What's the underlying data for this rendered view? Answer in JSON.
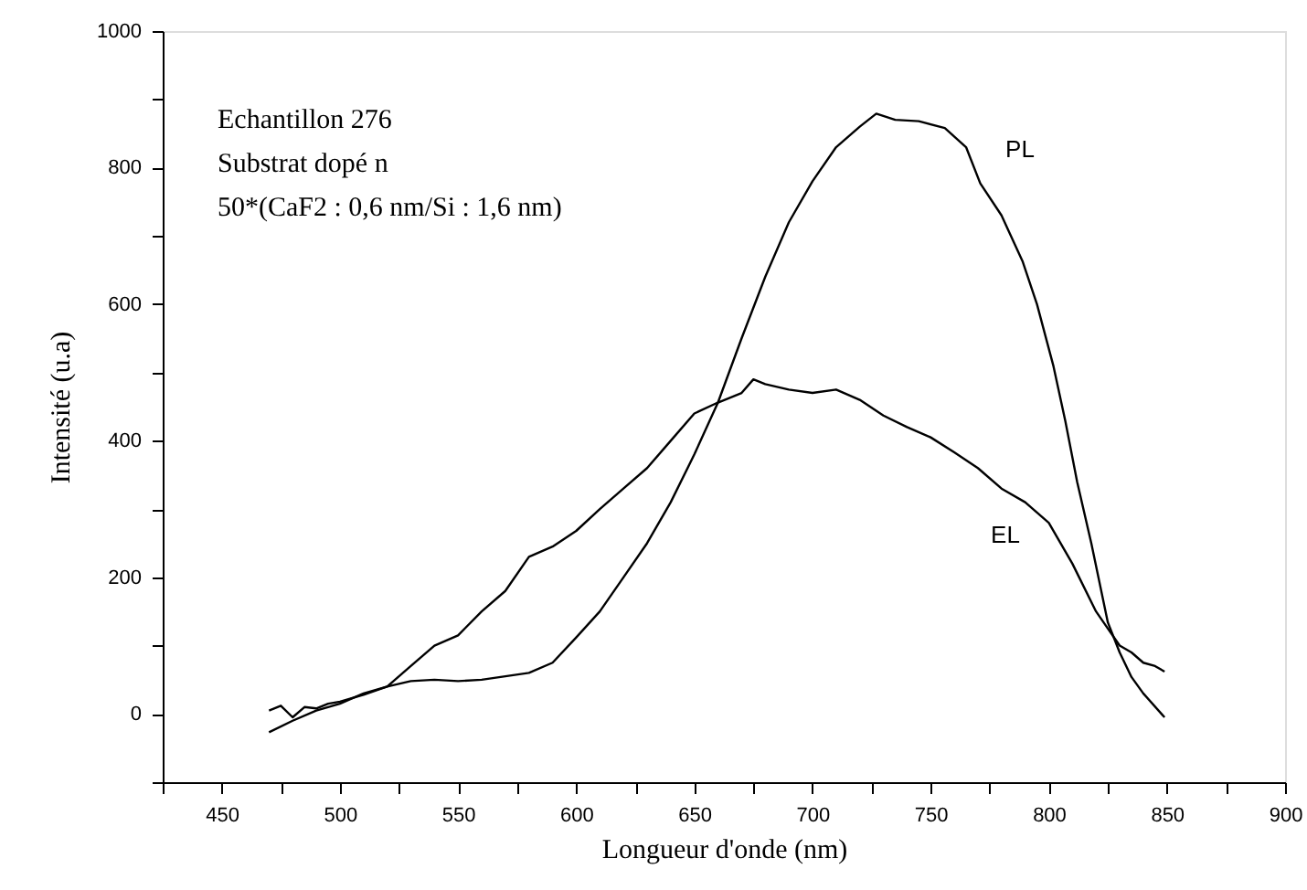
{
  "chart_data": {
    "type": "line",
    "xlabel": "Longueur d'onde (nm)",
    "ylabel": "Intensité (u.a)",
    "xlim": [
      425,
      900
    ],
    "ylim": [
      -100,
      1000
    ],
    "xticks": [
      {
        "value": 425,
        "label": null
      },
      450,
      {
        "value": 475,
        "label": null
      },
      500,
      {
        "value": 525,
        "label": null
      },
      550,
      {
        "value": 575,
        "label": null
      },
      600,
      {
        "value": 625,
        "label": null
      },
      650,
      {
        "value": 675,
        "label": null
      },
      700,
      {
        "value": 725,
        "label": null
      },
      750,
      {
        "value": 775,
        "label": null
      },
      800,
      {
        "value": 825,
        "label": null
      },
      850,
      {
        "value": 875,
        "label": null
      },
      900
    ],
    "yticks": [
      {
        "value": -100,
        "label": null
      },
      0,
      {
        "value": 100,
        "label": null
      },
      200,
      {
        "value": 300,
        "label": null
      },
      400,
      {
        "value": 500,
        "label": null
      },
      600,
      {
        "value": 700,
        "label": null
      },
      800,
      {
        "value": 900,
        "label": null
      },
      1000
    ],
    "grid": false,
    "marker": "none",
    "line_style": "solid",
    "annotations": [
      "Echantillon 276",
      "Substrat dopé n",
      "50*(CaF2 : 0,6 nm/Si : 1,6 nm)"
    ],
    "series": [
      {
        "name": "EL",
        "color": "#000000",
        "x": [
          470,
          475,
          480,
          485,
          490,
          495,
          500,
          510,
          520,
          530,
          540,
          550,
          560,
          570,
          580,
          590,
          600,
          610,
          620,
          630,
          640,
          650,
          660,
          670,
          675,
          680,
          690,
          700,
          710,
          720,
          730,
          740,
          750,
          760,
          770,
          780,
          790,
          800,
          810,
          820,
          825,
          830,
          835,
          840,
          845,
          849
        ],
        "values": [
          5,
          12,
          -5,
          10,
          8,
          15,
          18,
          28,
          40,
          70,
          100,
          115,
          150,
          180,
          230,
          245,
          268,
          300,
          330,
          360,
          400,
          440,
          456,
          470,
          490,
          483,
          475,
          470,
          475,
          460,
          437,
          420,
          405,
          383,
          360,
          330,
          310,
          280,
          220,
          150,
          125,
          100,
          90,
          75,
          70,
          62
        ]
      },
      {
        "name": "PL",
        "color": "#000000",
        "x": [
          470,
          480,
          490,
          500,
          510,
          520,
          530,
          540,
          550,
          560,
          570,
          580,
          590,
          600,
          610,
          620,
          630,
          640,
          650,
          660,
          670,
          680,
          690,
          700,
          710,
          720,
          727,
          735,
          745,
          756,
          765,
          771,
          780,
          789,
          795,
          802,
          807,
          812,
          818,
          825,
          830,
          835,
          840,
          849
        ],
        "values": [
          -27,
          -10,
          5,
          15,
          30,
          40,
          48,
          50,
          48,
          50,
          55,
          60,
          75,
          112,
          150,
          200,
          250,
          310,
          380,
          456,
          550,
          640,
          720,
          780,
          830,
          860,
          879,
          870,
          868,
          858,
          830,
          777,
          730,
          662,
          600,
          509,
          429,
          340,
          250,
          134,
          90,
          54,
          30,
          -5
        ]
      }
    ]
  }
}
